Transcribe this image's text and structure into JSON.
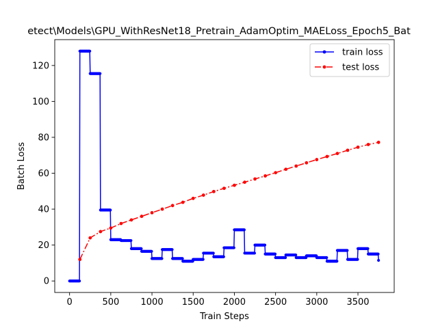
{
  "chart_data": {
    "type": "line",
    "title": "etect\\Models\\GPU_WithResNet18_Pretrain_AdamOptim_MAELoss_Epoch5_Bat",
    "xlabel": "Train Steps",
    "ylabel": "Batch Loss",
    "xlim": [
      -180,
      3940
    ],
    "ylim": [
      -6.4,
      134.4
    ],
    "xticks": [
      0,
      500,
      1000,
      1500,
      2000,
      2500,
      3000,
      3500
    ],
    "yticks": [
      0,
      20,
      40,
      60,
      80,
      100,
      120
    ],
    "grid": false,
    "legend_position": "upper right",
    "series": [
      {
        "name": "train loss",
        "color": "#0000ff",
        "line_style": "solid",
        "marker": "dot",
        "steps": [
          [
            0,
            0
          ],
          [
            125,
            128
          ],
          [
            250,
            115.5
          ],
          [
            375,
            39.5
          ],
          [
            500,
            23
          ],
          [
            625,
            22.5
          ],
          [
            750,
            18
          ],
          [
            875,
            16.5
          ],
          [
            1000,
            12.5
          ],
          [
            1125,
            17.5
          ],
          [
            1250,
            12.5
          ],
          [
            1375,
            11
          ],
          [
            1500,
            12
          ],
          [
            1625,
            15.5
          ],
          [
            1750,
            13.5
          ],
          [
            1875,
            18.5
          ],
          [
            2000,
            28.5
          ],
          [
            2125,
            15.5
          ],
          [
            2250,
            20
          ],
          [
            2375,
            15
          ],
          [
            2500,
            13
          ],
          [
            2625,
            14.5
          ],
          [
            2750,
            13
          ],
          [
            2875,
            14
          ],
          [
            3000,
            13
          ],
          [
            3125,
            11
          ],
          [
            3250,
            17
          ],
          [
            3375,
            12
          ],
          [
            3500,
            18
          ],
          [
            3625,
            15
          ],
          [
            3750,
            11.5
          ]
        ]
      },
      {
        "name": "test loss",
        "color": "#ff0000",
        "line_style": "dashdot",
        "marker": "dot",
        "x": [
          125,
          250,
          375,
          500,
          625,
          750,
          875,
          1000,
          1125,
          1250,
          1375,
          1500,
          1625,
          1750,
          1875,
          2000,
          2125,
          2250,
          2375,
          2500,
          2625,
          2750,
          2875,
          3000,
          3125,
          3250,
          3375,
          3500,
          3625,
          3750
        ],
        "y": [
          12,
          24,
          27.5,
          29.5,
          32,
          34,
          36,
          38,
          40,
          42,
          43.8,
          46,
          47.8,
          49.8,
          51.6,
          53.3,
          55,
          56.8,
          58.5,
          60.3,
          62.2,
          64,
          65.8,
          67.6,
          69.3,
          71,
          72.8,
          74.5,
          76,
          77.2
        ]
      }
    ]
  }
}
